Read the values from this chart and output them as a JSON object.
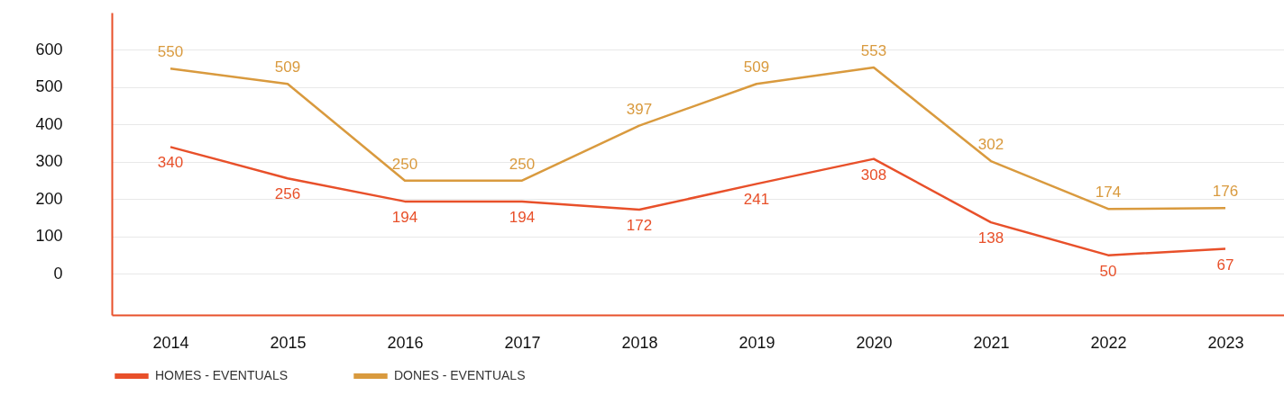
{
  "chart_data": {
    "type": "line",
    "categories": [
      "2014",
      "2015",
      "2016",
      "2017",
      "2018",
      "2019",
      "2020",
      "2021",
      "2022",
      "2023"
    ],
    "series": [
      {
        "name": "HOMES - EVENTUALS",
        "color": "#e8502a",
        "values": [
          340,
          256,
          194,
          194,
          172,
          241,
          308,
          138,
          50,
          67
        ]
      },
      {
        "name": "DONES - EVENTUALS",
        "color": "#d99a3e",
        "values": [
          550,
          509,
          250,
          250,
          397,
          509,
          553,
          302,
          174,
          176
        ]
      }
    ],
    "ylim": [
      -110,
      700
    ],
    "yticks": [
      0,
      100,
      200,
      300,
      400,
      500,
      600
    ],
    "grid": "y",
    "legend": "bottom",
    "data_labels": true,
    "marker": "none",
    "line_style": "solid"
  }
}
